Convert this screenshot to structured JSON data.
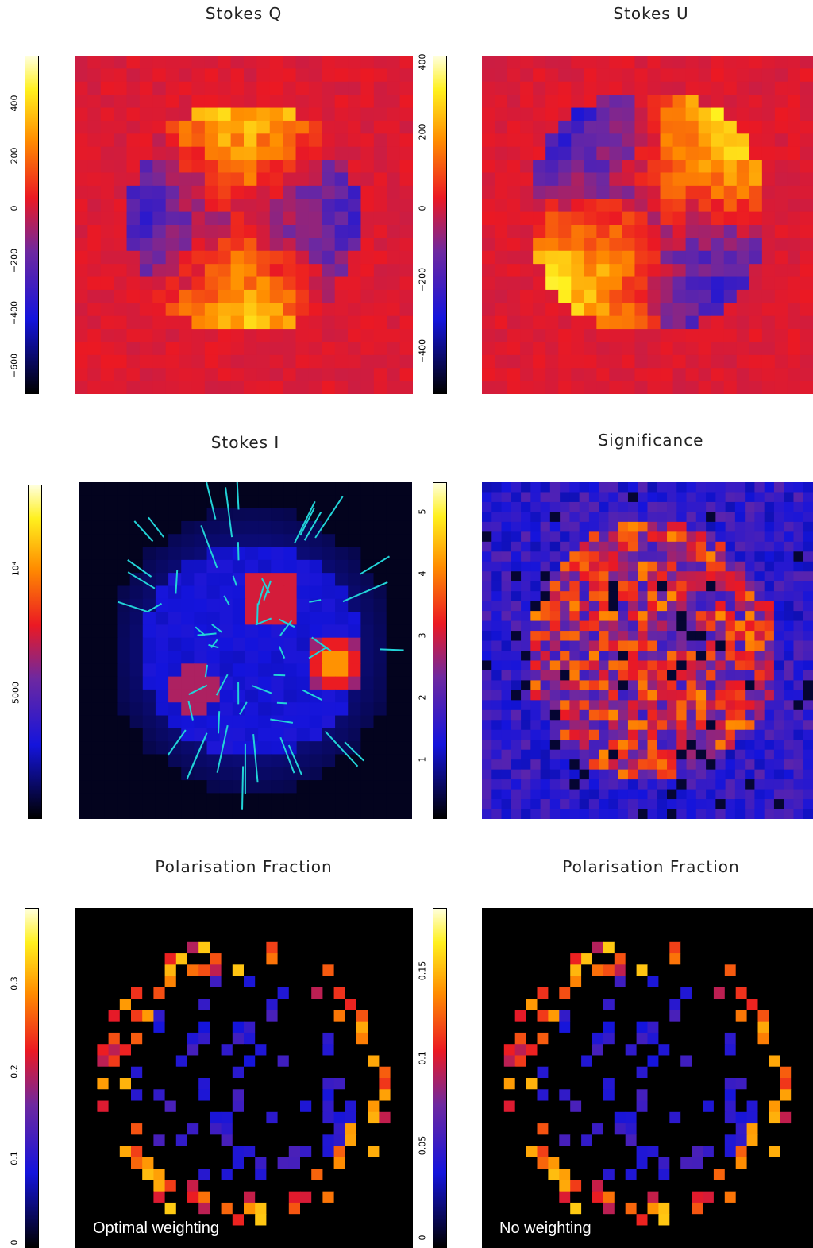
{
  "colors": {
    "vectors": "#22d3d8"
  },
  "chart_data": [
    {
      "type": "heatmap",
      "title": "Stokes Q",
      "colormap": "heat",
      "ticks": [
        "400",
        "200",
        "0",
        "−200",
        "−400",
        "−600"
      ]
    },
    {
      "type": "heatmap",
      "title": "Stokes U",
      "colormap": "heat",
      "ticks": [
        "400",
        "200",
        "0",
        "−200",
        "−400"
      ]
    },
    {
      "type": "heatmap",
      "title": "Stokes I",
      "colormap": "heat",
      "ticks": [
        "10⁴",
        "5000"
      ],
      "overlay": "polarisation vectors"
    },
    {
      "type": "heatmap",
      "title": "Significance",
      "colormap": "heat",
      "ticks": [
        "5",
        "4",
        "3",
        "2",
        "1"
      ]
    },
    {
      "type": "heatmap",
      "title": "Polarisation Fraction",
      "colormap": "heat",
      "ticks": [
        "0.3",
        "0.2",
        "0.1",
        "0"
      ],
      "caption": "Optimal weighting"
    },
    {
      "type": "heatmap",
      "title": "Polarisation Fraction",
      "colormap": "heat",
      "ticks": [
        "0.15",
        "0.1",
        "0.05",
        "0"
      ],
      "caption": "No weighting"
    }
  ]
}
